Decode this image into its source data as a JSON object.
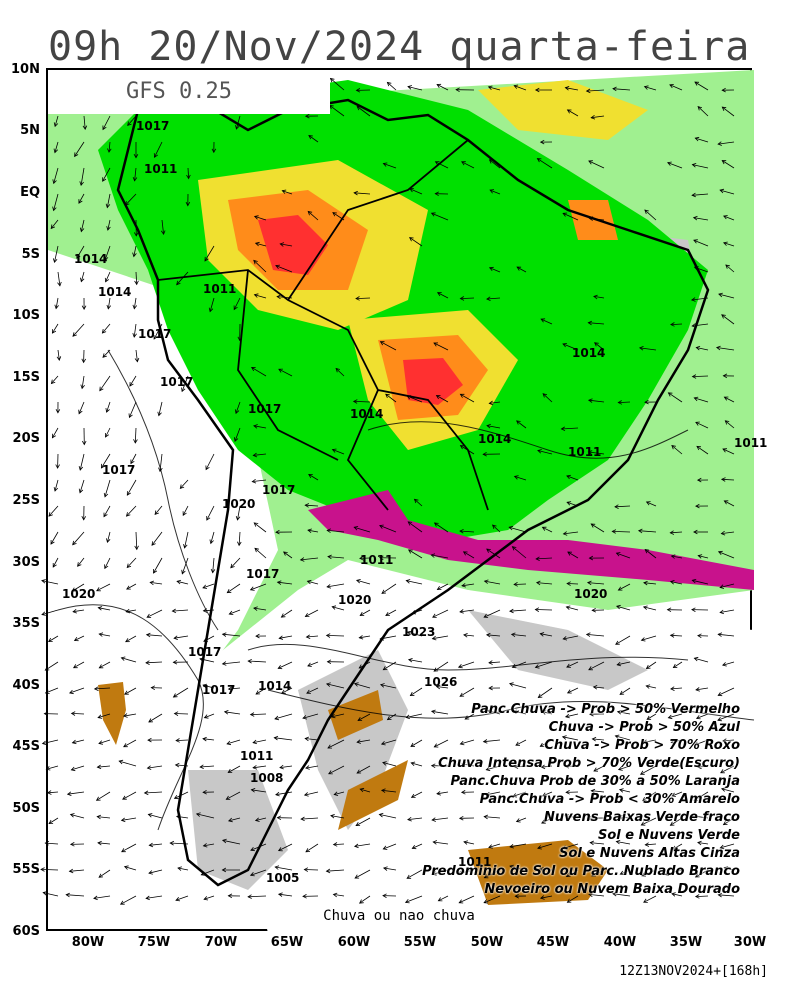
{
  "title": "09h 20/Nov/2024 quarta-feira",
  "model": "GFS 0.25",
  "caption": "Chuva ou nao chuva",
  "run_label": "12Z13NOV2024+[168h]",
  "lat_labels": [
    "10N",
    "5N",
    "EQ",
    "5S",
    "10S",
    "15S",
    "20S",
    "25S",
    "30S",
    "35S",
    "40S",
    "45S",
    "50S",
    "55S",
    "60S"
  ],
  "lon_labels": [
    "80W",
    "75W",
    "70W",
    "65W",
    "60W",
    "55W",
    "50W",
    "45W",
    "40W",
    "35W",
    "30W"
  ],
  "pressure_labels": [
    "1017",
    "1011",
    "1014",
    "1014",
    "1011",
    "1017",
    "1014",
    "1017",
    "1017",
    "1014",
    "1014",
    "1011",
    "1011",
    "1017",
    "1020",
    "1017",
    "1017",
    "1020",
    "1011",
    "1017",
    "1020",
    "1020",
    "1023",
    "1026",
    "1017",
    "1014",
    "1011",
    "1008",
    "1005",
    "1011"
  ],
  "legend": [
    {
      "text": "Panc.Chuva -> Prob > 50% Vermelho",
      "color": "#ff3030"
    },
    {
      "text": "Chuva -> Prob > 50% Azul",
      "color": "#1a3cff"
    },
    {
      "text": "Chuva -> Prob > 70% Roxo",
      "color": "#c8128c"
    },
    {
      "text": "Chuva Intensa Prob > 70% Verde(Escuro)",
      "color": "#00e000"
    },
    {
      "text": "Panc.Chuva Prob de 30% a 50% Laranja",
      "color": "#ff8c1a"
    },
    {
      "text": "Panc.Chuva -> Prob < 30% Amarelo",
      "color": "#f0e030"
    },
    {
      "text": "Nuvens Baixas Verde fraco",
      "color": "#a0f090"
    },
    {
      "text": "Sol e Nuvens Verde",
      "color": "#00e000"
    },
    {
      "text": "Sol e Nuvens Altas Cinza",
      "color": "#c8c8c8"
    },
    {
      "text": "Predominio de Sol ou Parc. Nublado Branco",
      "color": "#ffffff"
    },
    {
      "text": "Nevoeiro ou Nuvem Baixa Dourado",
      "color": "#c07a10"
    }
  ],
  "colors": {
    "light_green": "#a0f090",
    "green": "#00e000",
    "gray": "#c8c8c8",
    "magenta": "#c8128c",
    "red": "#ff3030",
    "orange": "#ff8c1a",
    "yellow": "#f0e030",
    "gold": "#c07a10",
    "blue": "#1a3cff"
  }
}
